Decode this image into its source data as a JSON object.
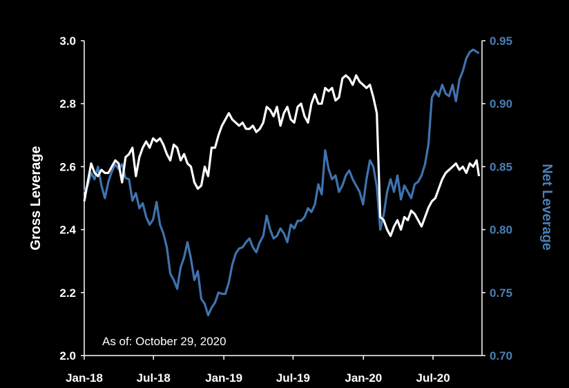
{
  "chart_data": {
    "type": "line",
    "title": "",
    "annotation": "As of: October 29, 2020",
    "xlabel": "",
    "ylabel_left": "Gross Leverage",
    "ylabel_right": "Net Leverage",
    "ylim_left": [
      2.0,
      3.0
    ],
    "ylim_right": [
      0.7,
      0.95
    ],
    "xlim": [
      "2018-01-01",
      "2020-11-06"
    ],
    "x_ticks": [
      {
        "label": "Jan-18",
        "date": "2018-01-01"
      },
      {
        "label": "Jul-18",
        "date": "2018-07-01"
      },
      {
        "label": "Jan-19",
        "date": "2019-01-01"
      },
      {
        "label": "Jul-19",
        "date": "2019-07-01"
      },
      {
        "label": "Jan-20",
        "date": "2020-01-01"
      },
      {
        "label": "Jul-20",
        "date": "2020-07-01"
      }
    ],
    "y_ticks_left": [
      "2.0",
      "2.2",
      "2.4",
      "2.6",
      "2.8",
      "3.0"
    ],
    "y_ticks_right": [
      "0.70",
      "0.75",
      "0.80",
      "0.85",
      "0.90",
      "0.95"
    ],
    "grid": false,
    "colors": {
      "gross": "#ffffff",
      "net": "#3f73ae",
      "background": "#000000"
    },
    "series": [
      {
        "axis": "left",
        "points": [
          [
            "2018-01-01",
            2.49
          ],
          [
            "2018-01-10",
            2.55
          ],
          [
            "2018-01-19",
            2.61
          ],
          [
            "2018-01-28",
            2.58
          ],
          [
            "2018-02-06",
            2.57
          ],
          [
            "2018-02-15",
            2.59
          ],
          [
            "2018-02-24",
            2.58
          ],
          [
            "2018-03-05",
            2.58
          ],
          [
            "2018-03-14",
            2.6
          ],
          [
            "2018-03-23",
            2.62
          ],
          [
            "2018-04-01",
            2.61
          ],
          [
            "2018-04-10",
            2.55
          ],
          [
            "2018-04-19",
            2.63
          ],
          [
            "2018-04-28",
            2.64
          ],
          [
            "2018-05-07",
            2.66
          ],
          [
            "2018-05-16",
            2.57
          ],
          [
            "2018-05-25",
            2.63
          ],
          [
            "2018-06-03",
            2.66
          ],
          [
            "2018-06-12",
            2.68
          ],
          [
            "2018-06-21",
            2.66
          ],
          [
            "2018-06-30",
            2.69
          ],
          [
            "2018-07-09",
            2.68
          ],
          [
            "2018-07-18",
            2.69
          ],
          [
            "2018-07-27",
            2.67
          ],
          [
            "2018-08-05",
            2.64
          ],
          [
            "2018-08-14",
            2.62
          ],
          [
            "2018-08-23",
            2.67
          ],
          [
            "2018-09-01",
            2.66
          ],
          [
            "2018-09-10",
            2.62
          ],
          [
            "2018-09-19",
            2.64
          ],
          [
            "2018-09-28",
            2.61
          ],
          [
            "2018-10-07",
            2.6
          ],
          [
            "2018-10-16",
            2.55
          ],
          [
            "2018-10-25",
            2.53
          ],
          [
            "2018-11-03",
            2.54
          ],
          [
            "2018-11-12",
            2.6
          ],
          [
            "2018-11-21",
            2.57
          ],
          [
            "2018-11-30",
            2.66
          ],
          [
            "2018-12-09",
            2.66
          ],
          [
            "2018-12-18",
            2.7
          ],
          [
            "2018-12-27",
            2.73
          ],
          [
            "2019-01-05",
            2.75
          ],
          [
            "2019-01-14",
            2.77
          ],
          [
            "2019-01-23",
            2.75
          ],
          [
            "2019-02-01",
            2.74
          ],
          [
            "2019-02-10",
            2.73
          ],
          [
            "2019-02-19",
            2.74
          ],
          [
            "2019-02-28",
            2.72
          ],
          [
            "2019-03-09",
            2.72
          ],
          [
            "2019-03-18",
            2.73
          ],
          [
            "2019-03-27",
            2.71
          ],
          [
            "2019-04-05",
            2.72
          ],
          [
            "2019-04-14",
            2.74
          ],
          [
            "2019-04-23",
            2.79
          ],
          [
            "2019-05-02",
            2.78
          ],
          [
            "2019-05-11",
            2.76
          ],
          [
            "2019-05-20",
            2.79
          ],
          [
            "2019-05-29",
            2.73
          ],
          [
            "2019-06-07",
            2.77
          ],
          [
            "2019-06-16",
            2.79
          ],
          [
            "2019-06-25",
            2.75
          ],
          [
            "2019-07-04",
            2.74
          ],
          [
            "2019-07-13",
            2.79
          ],
          [
            "2019-07-22",
            2.8
          ],
          [
            "2019-07-31",
            2.76
          ],
          [
            "2019-08-09",
            2.74
          ],
          [
            "2019-08-18",
            2.8
          ],
          [
            "2019-08-27",
            2.83
          ],
          [
            "2019-09-05",
            2.8
          ],
          [
            "2019-09-14",
            2.8
          ],
          [
            "2019-09-23",
            2.85
          ],
          [
            "2019-10-02",
            2.84
          ],
          [
            "2019-10-11",
            2.85
          ],
          [
            "2019-10-20",
            2.81
          ],
          [
            "2019-10-29",
            2.82
          ],
          [
            "2019-11-07",
            2.88
          ],
          [
            "2019-11-16",
            2.89
          ],
          [
            "2019-11-25",
            2.88
          ],
          [
            "2019-12-04",
            2.86
          ],
          [
            "2019-12-13",
            2.89
          ],
          [
            "2019-12-22",
            2.87
          ],
          [
            "2019-12-31",
            2.86
          ],
          [
            "2020-01-09",
            2.85
          ],
          [
            "2020-01-18",
            2.86
          ],
          [
            "2020-01-27",
            2.82
          ],
          [
            "2020-02-05",
            2.77
          ],
          [
            "2020-02-14",
            2.44
          ],
          [
            "2020-02-23",
            2.43
          ],
          [
            "2020-03-03",
            2.4
          ],
          [
            "2020-03-12",
            2.38
          ],
          [
            "2020-03-21",
            2.41
          ],
          [
            "2020-03-30",
            2.43
          ],
          [
            "2020-04-08",
            2.4
          ],
          [
            "2020-04-17",
            2.44
          ],
          [
            "2020-04-26",
            2.43
          ],
          [
            "2020-05-05",
            2.46
          ],
          [
            "2020-05-14",
            2.45
          ],
          [
            "2020-05-23",
            2.43
          ],
          [
            "2020-06-01",
            2.41
          ],
          [
            "2020-06-10",
            2.44
          ],
          [
            "2020-06-19",
            2.47
          ],
          [
            "2020-06-28",
            2.49
          ],
          [
            "2020-07-07",
            2.5
          ],
          [
            "2020-07-16",
            2.53
          ],
          [
            "2020-07-25",
            2.56
          ],
          [
            "2020-08-03",
            2.58
          ],
          [
            "2020-08-12",
            2.59
          ],
          [
            "2020-08-21",
            2.6
          ],
          [
            "2020-08-30",
            2.61
          ],
          [
            "2020-09-08",
            2.59
          ],
          [
            "2020-09-17",
            2.6
          ],
          [
            "2020-09-26",
            2.58
          ],
          [
            "2020-10-05",
            2.61
          ],
          [
            "2020-10-14",
            2.6
          ],
          [
            "2020-10-23",
            2.62
          ],
          [
            "2020-10-29",
            2.57
          ]
        ]
      },
      {
        "axis": "right",
        "points": [
          [
            "2018-01-01",
            0.83
          ],
          [
            "2018-01-10",
            0.835
          ],
          [
            "2018-01-19",
            0.845
          ],
          [
            "2018-01-28",
            0.84
          ],
          [
            "2018-02-06",
            0.85
          ],
          [
            "2018-02-15",
            0.835
          ],
          [
            "2018-02-24",
            0.825
          ],
          [
            "2018-03-05",
            0.838
          ],
          [
            "2018-03-14",
            0.846
          ],
          [
            "2018-03-23",
            0.852
          ],
          [
            "2018-04-01",
            0.848
          ],
          [
            "2018-04-10",
            0.852
          ],
          [
            "2018-04-19",
            0.841
          ],
          [
            "2018-04-28",
            0.84
          ],
          [
            "2018-05-07",
            0.823
          ],
          [
            "2018-05-16",
            0.829
          ],
          [
            "2018-05-25",
            0.817
          ],
          [
            "2018-06-03",
            0.821
          ],
          [
            "2018-06-12",
            0.81
          ],
          [
            "2018-06-21",
            0.804
          ],
          [
            "2018-06-30",
            0.808
          ],
          [
            "2018-07-09",
            0.822
          ],
          [
            "2018-07-18",
            0.804
          ],
          [
            "2018-07-27",
            0.797
          ],
          [
            "2018-08-05",
            0.786
          ],
          [
            "2018-08-14",
            0.765
          ],
          [
            "2018-08-23",
            0.76
          ],
          [
            "2018-09-01",
            0.753
          ],
          [
            "2018-09-10",
            0.77
          ],
          [
            "2018-09-19",
            0.778
          ],
          [
            "2018-09-28",
            0.79
          ],
          [
            "2018-10-07",
            0.777
          ],
          [
            "2018-10-16",
            0.76
          ],
          [
            "2018-10-25",
            0.767
          ],
          [
            "2018-11-03",
            0.745
          ],
          [
            "2018-11-12",
            0.741
          ],
          [
            "2018-11-21",
            0.732
          ],
          [
            "2018-11-30",
            0.738
          ],
          [
            "2018-12-09",
            0.742
          ],
          [
            "2018-12-18",
            0.75
          ],
          [
            "2018-12-27",
            0.749
          ],
          [
            "2019-01-05",
            0.749
          ],
          [
            "2019-01-14",
            0.758
          ],
          [
            "2019-01-23",
            0.772
          ],
          [
            "2019-02-01",
            0.781
          ],
          [
            "2019-02-10",
            0.785
          ],
          [
            "2019-02-19",
            0.786
          ],
          [
            "2019-02-28",
            0.79
          ],
          [
            "2019-03-09",
            0.793
          ],
          [
            "2019-03-18",
            0.786
          ],
          [
            "2019-03-27",
            0.782
          ],
          [
            "2019-04-05",
            0.79
          ],
          [
            "2019-04-14",
            0.795
          ],
          [
            "2019-04-23",
            0.811
          ],
          [
            "2019-05-02",
            0.8
          ],
          [
            "2019-05-11",
            0.793
          ],
          [
            "2019-05-20",
            0.795
          ],
          [
            "2019-05-29",
            0.801
          ],
          [
            "2019-06-07",
            0.797
          ],
          [
            "2019-06-16",
            0.79
          ],
          [
            "2019-06-25",
            0.804
          ],
          [
            "2019-07-04",
            0.801
          ],
          [
            "2019-07-13",
            0.807
          ],
          [
            "2019-07-22",
            0.807
          ],
          [
            "2019-07-31",
            0.81
          ],
          [
            "2019-08-09",
            0.817
          ],
          [
            "2019-08-18",
            0.814
          ],
          [
            "2019-08-27",
            0.82
          ],
          [
            "2019-09-05",
            0.836
          ],
          [
            "2019-09-14",
            0.828
          ],
          [
            "2019-09-23",
            0.863
          ],
          [
            "2019-10-02",
            0.848
          ],
          [
            "2019-10-11",
            0.84
          ],
          [
            "2019-10-20",
            0.843
          ],
          [
            "2019-10-29",
            0.83
          ],
          [
            "2019-11-07",
            0.835
          ],
          [
            "2019-11-16",
            0.843
          ],
          [
            "2019-11-25",
            0.847
          ],
          [
            "2019-12-04",
            0.84
          ],
          [
            "2019-12-13",
            0.835
          ],
          [
            "2019-12-22",
            0.83
          ],
          [
            "2019-12-31",
            0.82
          ],
          [
            "2020-01-09",
            0.84
          ],
          [
            "2020-01-18",
            0.855
          ],
          [
            "2020-01-27",
            0.85
          ],
          [
            "2020-02-05",
            0.834
          ],
          [
            "2020-02-14",
            0.8
          ],
          [
            "2020-02-23",
            0.812
          ],
          [
            "2020-03-03",
            0.83
          ],
          [
            "2020-03-12",
            0.84
          ],
          [
            "2020-03-21",
            0.83
          ],
          [
            "2020-03-30",
            0.843
          ],
          [
            "2020-04-08",
            0.824
          ],
          [
            "2020-04-17",
            0.835
          ],
          [
            "2020-04-26",
            0.83
          ],
          [
            "2020-05-05",
            0.825
          ],
          [
            "2020-05-14",
            0.836
          ],
          [
            "2020-05-23",
            0.838
          ],
          [
            "2020-06-01",
            0.843
          ],
          [
            "2020-06-10",
            0.852
          ],
          [
            "2020-06-19",
            0.868
          ],
          [
            "2020-06-28",
            0.905
          ],
          [
            "2020-07-07",
            0.91
          ],
          [
            "2020-07-16",
            0.906
          ],
          [
            "2020-07-25",
            0.915
          ],
          [
            "2020-08-03",
            0.908
          ],
          [
            "2020-08-12",
            0.906
          ],
          [
            "2020-08-21",
            0.915
          ],
          [
            "2020-08-30",
            0.902
          ],
          [
            "2020-09-08",
            0.919
          ],
          [
            "2020-09-17",
            0.926
          ],
          [
            "2020-09-26",
            0.936
          ],
          [
            "2020-10-05",
            0.941
          ],
          [
            "2020-10-14",
            0.943
          ],
          [
            "2020-10-29",
            0.94
          ]
        ]
      }
    ]
  }
}
